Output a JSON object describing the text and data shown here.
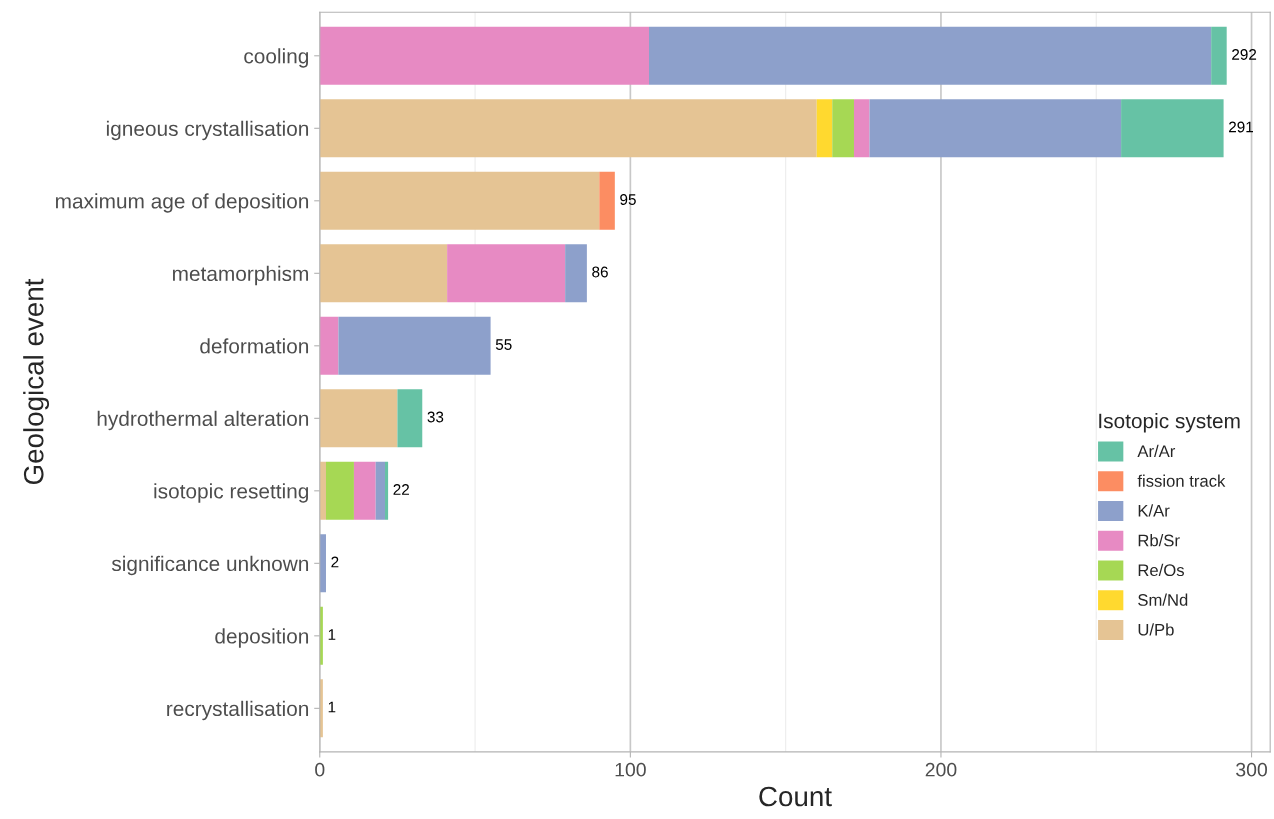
{
  "chart_data": {
    "type": "bar",
    "orientation": "horizontal",
    "stacked": true,
    "xlabel": "Count",
    "ylabel": "Geological event",
    "legend_title": "Isotopic system",
    "categories": [
      "cooling",
      "igneous crystallisation",
      "maximum age of deposition",
      "metamorphism",
      "deformation",
      "hydrothermal alteration",
      "isotopic resetting",
      "significance unknown",
      "deposition",
      "recrystallisation"
    ],
    "series": [
      {
        "name": "U/Pb",
        "color": "#e5c494",
        "values": [
          0,
          160,
          90,
          41,
          0,
          25,
          2,
          0,
          0,
          1
        ]
      },
      {
        "name": "Sm/Nd",
        "color": "#ffd92f",
        "values": [
          0,
          5,
          0,
          0,
          0,
          0,
          0,
          0,
          0,
          0
        ]
      },
      {
        "name": "Re/Os",
        "color": "#a6d854",
        "values": [
          0,
          7,
          0,
          0,
          0,
          0,
          9,
          0,
          1,
          0
        ]
      },
      {
        "name": "Rb/Sr",
        "color": "#e78ac3",
        "values": [
          106,
          5,
          0,
          38,
          6,
          0,
          7,
          0,
          0,
          0
        ]
      },
      {
        "name": "K/Ar",
        "color": "#8da0cb",
        "values": [
          181,
          81,
          0,
          7,
          49,
          0,
          3,
          2,
          0,
          0
        ]
      },
      {
        "name": "fission track",
        "color": "#fc8d62",
        "values": [
          0,
          0,
          5,
          0,
          0,
          0,
          0,
          0,
          0,
          0
        ]
      },
      {
        "name": "Ar/Ar",
        "color": "#66c2a5",
        "values": [
          5,
          33,
          0,
          0,
          0,
          8,
          1,
          0,
          0,
          0
        ]
      }
    ],
    "totals": [
      "292",
      "291",
      "95",
      "86",
      "55",
      "33",
      "22",
      "2",
      "1",
      "1"
    ],
    "xlim": [
      0,
      306
    ],
    "xticks": [
      0,
      100,
      200,
      300
    ],
    "grid": "x",
    "legend": "bottom right"
  }
}
